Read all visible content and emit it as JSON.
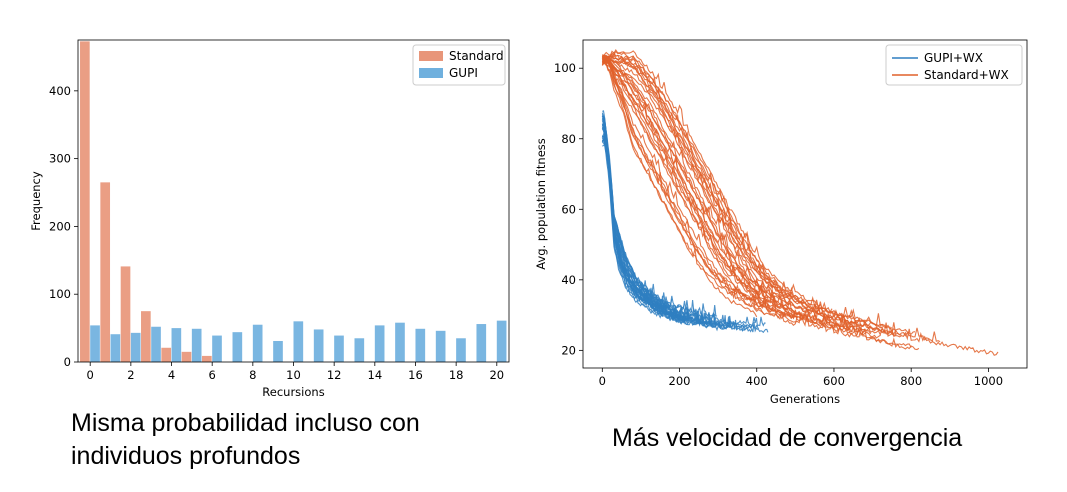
{
  "chart_data": [
    {
      "type": "bar",
      "xlabel": "Recursions",
      "ylabel": "Frequency",
      "xlim": [
        -0.6,
        20.6
      ],
      "ylim": [
        0,
        475
      ],
      "xticks": [
        "0",
        "2",
        "4",
        "6",
        "8",
        "10",
        "12",
        "14",
        "16",
        "18",
        "20"
      ],
      "yticks": [
        "0",
        "100",
        "200",
        "300",
        "400"
      ],
      "legend_position": "top-right",
      "grid": false,
      "categories": [
        0,
        1,
        2,
        3,
        4,
        5,
        6,
        7,
        8,
        9,
        10,
        11,
        12,
        13,
        14,
        15,
        16,
        17,
        18,
        19,
        20
      ],
      "series": [
        {
          "name": "Standard",
          "color": "#e8967a",
          "values": [
            473,
            265,
            141,
            75,
            21,
            15,
            9,
            0,
            0,
            0,
            0,
            0,
            0,
            0,
            0,
            0,
            0,
            0,
            0,
            0,
            0
          ]
        },
        {
          "name": "GUPI",
          "color": "#6fb0de",
          "values": [
            54,
            41,
            43,
            52,
            50,
            49,
            39,
            44,
            55,
            31,
            60,
            48,
            39,
            35,
            54,
            58,
            49,
            46,
            35,
            56,
            61
          ]
        }
      ]
    },
    {
      "type": "line",
      "xlabel": "Generations",
      "ylabel": "Avg. population fitness",
      "xlim": [
        -50,
        1100
      ],
      "ylim": [
        15,
        108
      ],
      "xticks": [
        "0",
        "200",
        "400",
        "600",
        "800",
        "1000"
      ],
      "yticks": [
        "20",
        "40",
        "60",
        "80",
        "100"
      ],
      "legend_position": "top-right",
      "grid": false,
      "series": [
        {
          "name": "GUPI+WX",
          "color": "#2f7fc1",
          "runs": 30,
          "start_range": [
            78,
            89
          ],
          "mean_curve": {
            "x": [
              0,
              10,
              25,
              50,
              75,
              100,
              150,
              200,
              250,
              300,
              350,
              400,
              450
            ],
            "y": [
              86,
              70,
              57,
              45,
              39,
              36,
              32,
              30,
              29,
              28,
              27.5,
              27,
              26.5
            ]
          },
          "end_x_range": [
            160,
            450
          ]
        },
        {
          "name": "Standard+WX",
          "color": "#e0602a",
          "runs": 30,
          "start_range": [
            101,
            104
          ],
          "mean_curve": {
            "x": [
              0,
              50,
              100,
              150,
              200,
              250,
              300,
              350,
              400,
              500,
              600,
              700,
              800,
              900,
              1050
            ],
            "y": [
              103,
              97,
              89,
              79,
              69,
              59,
              49,
              41,
              36,
              30,
              27,
              24,
              22,
              20,
              17
            ]
          },
          "end_x_range": [
            400,
            1050
          ]
        }
      ]
    }
  ],
  "captions": {
    "left": "Misma probabilidad incluso con individuos profundos",
    "right": "Más velocidad de convergencia"
  }
}
